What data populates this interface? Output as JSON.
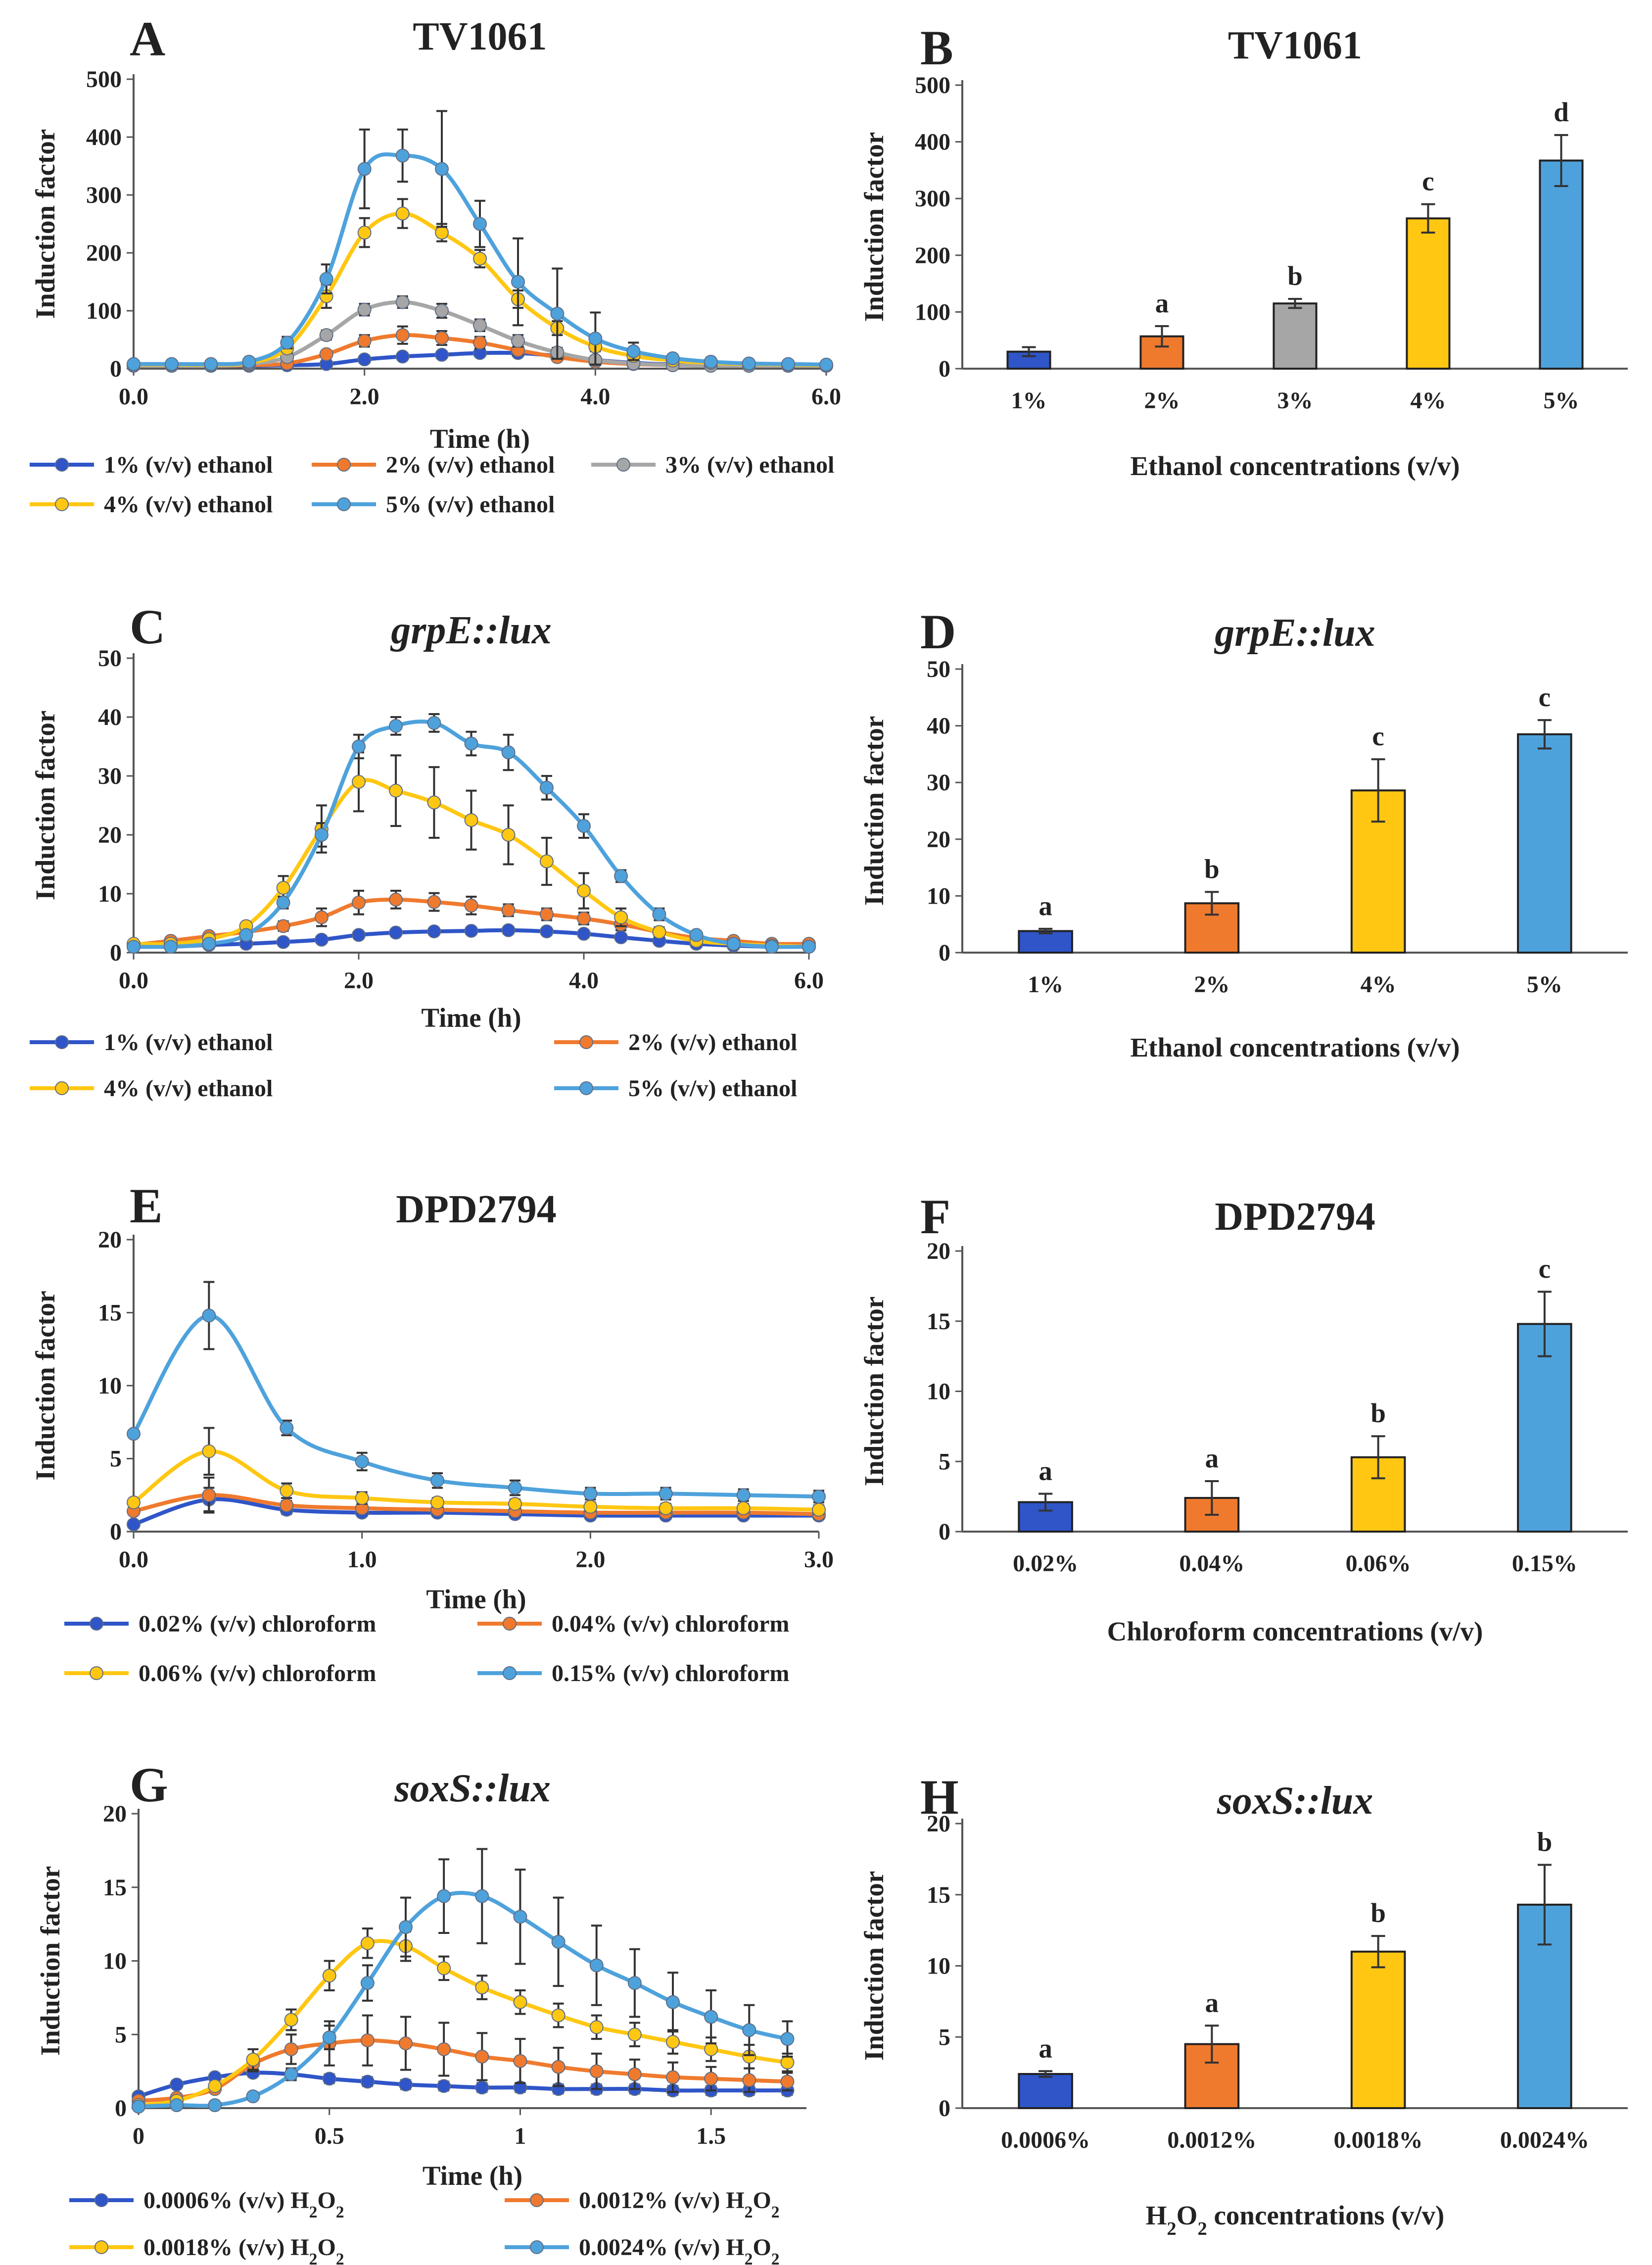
{
  "colors": {
    "blue": "#2F55C8",
    "orange": "#EF7A2E",
    "gray": "#A6A6A6",
    "yellow": "#FFC712",
    "lightblue": "#4EA2DC"
  },
  "chart_data": [
    {
      "type": "line",
      "panel": "A",
      "title": "TV1061",
      "title_italic": false,
      "xlabel": "Time (h)",
      "ylabel": "Induction factor",
      "xlim": [
        0,
        6
      ],
      "ylim": [
        0,
        500
      ],
      "xticks": [
        0,
        2,
        4,
        6
      ],
      "yticks": [
        0,
        100,
        200,
        300,
        400,
        500
      ],
      "xtick_decimals": 1,
      "x": [
        0,
        0.33,
        0.67,
        1.0,
        1.33,
        1.67,
        2.0,
        2.33,
        2.67,
        3.0,
        3.33,
        3.67,
        4.0,
        4.33,
        4.67,
        5.0,
        5.33,
        5.67,
        6.0
      ],
      "legend_layout": "three-column",
      "series": [
        {
          "name": "1% (v/v) ethanol",
          "color_key": "blue",
          "values": [
            5,
            5,
            5,
            5,
            6,
            8,
            16,
            21,
            24,
            27,
            27,
            22,
            15,
            10,
            7,
            6,
            5,
            5,
            5
          ],
          "errors": [
            0,
            0,
            0,
            0,
            0,
            0,
            3,
            3,
            3,
            4,
            4,
            3,
            3,
            0,
            0,
            0,
            0,
            0,
            0
          ]
        },
        {
          "name": "2% (v/v) ethanol",
          "color_key": "orange",
          "values": [
            5,
            5,
            5,
            6,
            9,
            25,
            48,
            58,
            53,
            45,
            32,
            20,
            12,
            8,
            6,
            5,
            5,
            5,
            5
          ],
          "errors": [
            0,
            0,
            0,
            0,
            0,
            5,
            10,
            15,
            12,
            10,
            8,
            5,
            3,
            0,
            0,
            0,
            0,
            0,
            0
          ]
        },
        {
          "name": "3% (v/v) ethanol",
          "color_key": "gray",
          "values": [
            5,
            5,
            5,
            8,
            20,
            58,
            102,
            115,
            100,
            75,
            48,
            28,
            15,
            9,
            6,
            5,
            5,
            5,
            5
          ],
          "errors": [
            0,
            0,
            0,
            0,
            4,
            8,
            10,
            10,
            12,
            10,
            10,
            8,
            5,
            0,
            0,
            0,
            0,
            0,
            0
          ]
        },
        {
          "name": "4% (v/v) ethanol",
          "color_key": "yellow",
          "values": [
            7,
            7,
            7,
            10,
            35,
            125,
            235,
            268,
            235,
            190,
            120,
            70,
            38,
            22,
            14,
            10,
            8,
            7,
            6
          ],
          "errors": [
            0,
            0,
            0,
            0,
            8,
            20,
            25,
            25,
            15,
            15,
            15,
            12,
            8,
            0,
            0,
            0,
            0,
            0,
            0
          ]
        },
        {
          "name": "5% (v/v) ethanol",
          "color_key": "lightblue",
          "values": [
            8,
            8,
            8,
            12,
            45,
            155,
            345,
            368,
            345,
            250,
            150,
            95,
            52,
            30,
            18,
            12,
            9,
            8,
            7
          ],
          "errors": [
            0,
            0,
            0,
            0,
            10,
            25,
            68,
            45,
            100,
            40,
            75,
            78,
            45,
            15,
            0,
            0,
            0,
            0,
            0
          ]
        }
      ]
    },
    {
      "type": "bar",
      "panel": "B",
      "title": "TV1061",
      "title_italic": false,
      "xlabel": "Ethanol concentrations (v/v)",
      "ylabel": "Induction factor",
      "ylim": [
        0,
        500
      ],
      "yticks": [
        0,
        100,
        200,
        300,
        400,
        500
      ],
      "categories": [
        "1%",
        "2%",
        "3%",
        "4%",
        "5%"
      ],
      "values": [
        30,
        57,
        115,
        265,
        367
      ],
      "errors": [
        8,
        18,
        8,
        25,
        45
      ],
      "bar_color_keys": [
        "blue",
        "orange",
        "gray",
        "yellow",
        "lightblue"
      ],
      "letters": [
        "",
        "a",
        "b",
        "c",
        "d"
      ]
    },
    {
      "type": "line",
      "panel": "C",
      "title": "grpE::lux",
      "title_italic": true,
      "xlabel": "Time (h)",
      "ylabel": "Induction factor",
      "xlim": [
        0,
        6
      ],
      "ylim": [
        0,
        50
      ],
      "xticks": [
        0,
        2,
        4,
        6
      ],
      "yticks": [
        0,
        10,
        20,
        30,
        40,
        50
      ],
      "xtick_decimals": 1,
      "x": [
        0,
        0.33,
        0.67,
        1.0,
        1.33,
        1.67,
        2.0,
        2.33,
        2.67,
        3.0,
        3.33,
        3.67,
        4.0,
        4.33,
        4.67,
        5.0,
        5.33,
        5.67,
        6.0
      ],
      "legend_layout": "two-column",
      "series": [
        {
          "name": "1% (v/v) ethanol",
          "color_key": "blue",
          "values": [
            1,
            1,
            1.3,
            1.5,
            1.8,
            2.2,
            3,
            3.4,
            3.6,
            3.7,
            3.8,
            3.6,
            3.2,
            2.6,
            2,
            1.5,
            1.2,
            1,
            1
          ],
          "errors": [
            0,
            0,
            0,
            0,
            0,
            0,
            0.5,
            0.5,
            0.5,
            0.5,
            0.5,
            0.5,
            0.5,
            0,
            0,
            0,
            0,
            0,
            0
          ]
        },
        {
          "name": "2% (v/v) ethanol",
          "color_key": "orange",
          "values": [
            1.3,
            2,
            2.8,
            3.5,
            4.5,
            6,
            8.5,
            9,
            8.6,
            8,
            7.2,
            6.5,
            5.8,
            4.8,
            3.5,
            2.5,
            2,
            1.5,
            1.5
          ],
          "errors": [
            0,
            0,
            0,
            0,
            0.8,
            1.5,
            2,
            1.5,
            1.5,
            1.5,
            1,
            1,
            1,
            1,
            0.8,
            0,
            0,
            0,
            0
          ]
        },
        {
          "name": "4% (v/v) ethanol",
          "color_key": "yellow",
          "values": [
            1.5,
            1.5,
            2.3,
            4.5,
            11,
            21,
            29,
            27.5,
            25.5,
            22.5,
            20,
            15.5,
            10.5,
            6,
            3.5,
            2,
            1.5,
            1.2,
            1
          ],
          "errors": [
            0,
            0,
            0,
            0,
            2,
            4,
            5,
            6,
            6,
            5,
            5,
            4,
            3,
            1.5,
            0,
            0,
            0,
            0,
            0
          ]
        },
        {
          "name": "5% (v/v) ethanol",
          "color_key": "lightblue",
          "values": [
            1,
            1,
            1.5,
            3,
            8.5,
            20,
            35,
            38.5,
            39,
            35.5,
            34,
            28,
            21.5,
            13,
            6.5,
            3,
            1.5,
            1,
            1
          ],
          "errors": [
            0,
            0,
            0,
            0,
            1,
            2,
            2,
            1.5,
            1.5,
            2,
            3,
            2,
            2,
            1,
            1,
            0,
            0,
            0,
            0
          ]
        }
      ]
    },
    {
      "type": "bar",
      "panel": "D",
      "title": "grpE::lux",
      "title_italic": true,
      "xlabel": "Ethanol concentrations (v/v)",
      "ylabel": "Induction factor",
      "ylim": [
        0,
        50
      ],
      "yticks": [
        0,
        10,
        20,
        30,
        40,
        50
      ],
      "categories": [
        "1%",
        "2%",
        "4%",
        "5%"
      ],
      "values": [
        3.8,
        8.7,
        28.6,
        38.5
      ],
      "errors": [
        0.4,
        2,
        5.5,
        2.5
      ],
      "bar_color_keys": [
        "blue",
        "orange",
        "yellow",
        "lightblue"
      ],
      "letters": [
        "a",
        "b",
        "c",
        "c"
      ]
    },
    {
      "type": "line",
      "panel": "E",
      "title": "DPD2794",
      "title_italic": false,
      "xlabel": "Time (h)",
      "ylabel": "Induction factor",
      "xlim": [
        0,
        3
      ],
      "ylim": [
        0,
        20
      ],
      "xticks": [
        0,
        1,
        2,
        3
      ],
      "yticks": [
        0,
        5,
        10,
        15,
        20
      ],
      "xtick_decimals": 1,
      "x": [
        0,
        0.33,
        0.67,
        1.0,
        1.33,
        1.67,
        2.0,
        2.33,
        2.67,
        3.0
      ],
      "legend_layout": "two-column",
      "series": [
        {
          "name": "0.02% (v/v) chloroform",
          "color_key": "blue",
          "values": [
            0.5,
            2.2,
            1.5,
            1.3,
            1.3,
            1.2,
            1.1,
            1.1,
            1.1,
            1.1
          ],
          "errors": [
            0,
            0.8,
            0.3,
            0.2,
            0.2,
            0.2,
            0.2,
            0.2,
            0.2,
            0.2
          ]
        },
        {
          "name": "0.04% (v/v) chloroform",
          "color_key": "orange",
          "values": [
            1.4,
            2.5,
            1.8,
            1.6,
            1.5,
            1.4,
            1.3,
            1.3,
            1.3,
            1.2
          ],
          "errors": [
            0,
            1.2,
            0.3,
            0.3,
            0.3,
            0.3,
            0.3,
            0.3,
            0.3,
            0.3
          ]
        },
        {
          "name": "0.06% (v/v) chloroform",
          "color_key": "yellow",
          "values": [
            2,
            5.5,
            2.8,
            2.3,
            2,
            1.9,
            1.7,
            1.6,
            1.6,
            1.5
          ],
          "errors": [
            0,
            1.6,
            0.5,
            0.4,
            0.3,
            0.3,
            0.3,
            0.3,
            0.3,
            0.3
          ]
        },
        {
          "name": "0.15% (v/v) chloroform",
          "color_key": "lightblue",
          "values": [
            6.7,
            14.8,
            7.1,
            4.8,
            3.5,
            3,
            2.6,
            2.6,
            2.5,
            2.4
          ],
          "errors": [
            0,
            2.3,
            0.5,
            0.6,
            0.5,
            0.5,
            0.4,
            0.4,
            0.4,
            0.4
          ]
        }
      ]
    },
    {
      "type": "bar",
      "panel": "F",
      "title": "DPD2794",
      "title_italic": false,
      "xlabel": "Chloroform concentrations (v/v)",
      "ylabel": "Induction factor",
      "ylim": [
        0,
        20
      ],
      "yticks": [
        0,
        5,
        10,
        15,
        20
      ],
      "categories": [
        "0.02%",
        "0.04%",
        "0.06%",
        "0.15%"
      ],
      "values": [
        2.1,
        2.4,
        5.3,
        14.8
      ],
      "errors": [
        0.6,
        1.2,
        1.5,
        2.3
      ],
      "bar_color_keys": [
        "blue",
        "orange",
        "yellow",
        "lightblue"
      ],
      "letters": [
        "a",
        "a",
        "b",
        "c"
      ]
    },
    {
      "type": "line",
      "panel": "G",
      "title": "soxS::lux",
      "title_italic": true,
      "xlabel": "Time (h)",
      "ylabel": "Induction factor",
      "xlim": [
        0,
        1.75
      ],
      "ylim": [
        0,
        20
      ],
      "xticks": [
        0,
        0.5,
        1,
        1.5
      ],
      "yticks": [
        0,
        5,
        10,
        15,
        20
      ],
      "xtick_decimals": -1,
      "x": [
        0,
        0.1,
        0.2,
        0.3,
        0.4,
        0.5,
        0.6,
        0.7,
        0.8,
        0.9,
        1.0,
        1.1,
        1.2,
        1.3,
        1.4,
        1.5,
        1.6,
        1.7
      ],
      "legend_layout": "two-column",
      "series": [
        {
          "name": "0.0006% (v/v) H2O2",
          "color_key": "blue",
          "values": [
            0.8,
            1.6,
            2.1,
            2.4,
            2.3,
            2,
            1.8,
            1.6,
            1.5,
            1.4,
            1.4,
            1.3,
            1.3,
            1.3,
            1.2,
            1.2,
            1.2,
            1.2
          ],
          "errors": [
            0,
            0,
            0,
            0,
            0.3,
            0.3,
            0.3,
            0.3,
            0.3,
            0.3,
            0.3,
            0.3,
            0.3,
            0.3,
            0.3,
            0.3,
            0.3,
            0.3
          ]
        },
        {
          "name": "0.0012% (v/v) H2O2",
          "color_key": "orange",
          "values": [
            0.5,
            0.7,
            1.3,
            3,
            4,
            4.4,
            4.6,
            4.4,
            4,
            3.5,
            3.2,
            2.8,
            2.5,
            2.3,
            2.1,
            2,
            1.9,
            1.8
          ],
          "errors": [
            0,
            0,
            0,
            0.5,
            1,
            1.5,
            1.7,
            1.8,
            1.8,
            1.6,
            1.5,
            1.3,
            1.2,
            1,
            1,
            0.8,
            0.8,
            0.6
          ]
        },
        {
          "name": "0.0018% (v/v) H2O2",
          "color_key": "yellow",
          "values": [
            0.2,
            0.5,
            1.5,
            3.3,
            6,
            9,
            11.2,
            11,
            9.5,
            8.2,
            7.2,
            6.3,
            5.5,
            5,
            4.5,
            4,
            3.5,
            3.1
          ],
          "errors": [
            0,
            0,
            0,
            0.7,
            0.7,
            1,
            1,
            1,
            0.8,
            0.8,
            0.8,
            0.8,
            0.8,
            0.8,
            0.8,
            0.8,
            0.8,
            0.6
          ]
        },
        {
          "name": "0.0024% (v/v) H2O2",
          "color_key": "lightblue",
          "values": [
            0.1,
            0.2,
            0.2,
            0.8,
            2.3,
            4.8,
            8.5,
            12.3,
            14.4,
            14.4,
            13,
            11.3,
            9.7,
            8.5,
            7.2,
            6.2,
            5.3,
            4.7
          ],
          "errors": [
            0,
            0,
            0,
            0,
            0.4,
            0.8,
            1.2,
            2,
            2.5,
            3.2,
            3.2,
            3,
            2.7,
            2.3,
            2,
            1.8,
            1.7,
            1.2
          ]
        }
      ]
    },
    {
      "type": "bar",
      "panel": "H",
      "title": "soxS::lux",
      "title_italic": true,
      "xlabel": "H2O2 concentrations (v/v)",
      "ylabel": "Induction factor",
      "ylim": [
        0,
        20
      ],
      "yticks": [
        0,
        5,
        10,
        15,
        20
      ],
      "categories": [
        "0.0006%",
        "0.0012%",
        "0.0018%",
        "0.0024%"
      ],
      "values": [
        2.4,
        4.5,
        11,
        14.3
      ],
      "errors": [
        0.2,
        1.3,
        1.1,
        2.8
      ],
      "bar_color_keys": [
        "blue",
        "orange",
        "yellow",
        "lightblue"
      ],
      "letters": [
        "a",
        "a",
        "b",
        "b"
      ]
    }
  ]
}
